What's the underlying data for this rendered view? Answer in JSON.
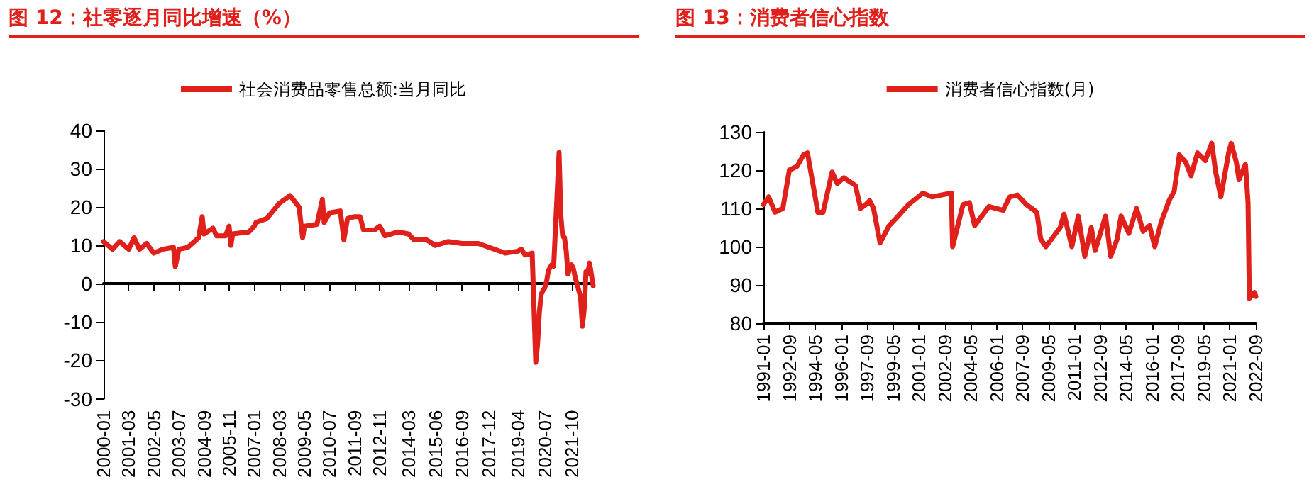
{
  "chart_data": [
    {
      "type": "line",
      "title": "图 12：社零逐月同比增速（%）",
      "legend": "top",
      "xlim": [
        "2000-01",
        "2022-10"
      ],
      "xticks": [
        "2000-01",
        "2001-03",
        "2002-05",
        "2003-07",
        "2004-09",
        "2005-11",
        "2007-01",
        "2008-03",
        "2009-05",
        "2010-07",
        "2011-09",
        "2012-11",
        "2014-03",
        "2015-06",
        "2016-09",
        "2017-12",
        "2019-04",
        "2020-07",
        "2021-10"
      ],
      "ylim": [
        -30,
        40
      ],
      "yticks": [
        -30,
        -20,
        -10,
        0,
        10,
        20,
        30,
        40
      ],
      "series": [
        {
          "name": "社会消费品零售总额:当月同比",
          "color": "#e0201b",
          "x": [
            "2000-01",
            "2000-06",
            "2000-10",
            "2001-03",
            "2001-06",
            "2001-09",
            "2002-01",
            "2002-05",
            "2002-10",
            "2003-04",
            "2003-05",
            "2003-07",
            "2003-12",
            "2004-06",
            "2004-08",
            "2004-09",
            "2005-02",
            "2005-04",
            "2005-09",
            "2005-11",
            "2005-12",
            "2006-01",
            "2006-10",
            "2007-01",
            "2007-02",
            "2007-08",
            "2008-03",
            "2008-09",
            "2009-02",
            "2009-04",
            "2009-05",
            "2009-12",
            "2010-03",
            "2010-04",
            "2010-07",
            "2011-01",
            "2011-03",
            "2011-05",
            "2011-09",
            "2011-12",
            "2012-02",
            "2012-08",
            "2012-11",
            "2013-02",
            "2013-09",
            "2014-03",
            "2014-06",
            "2015-01",
            "2015-06",
            "2016-01",
            "2016-09",
            "2017-06",
            "2017-12",
            "2018-09",
            "2019-04",
            "2019-06",
            "2019-08",
            "2019-12",
            "2020-02",
            "2020-03",
            "2020-04",
            "2020-05",
            "2020-06",
            "2020-07",
            "2020-08",
            "2020-09",
            "2020-10",
            "2020-11",
            "2020-12",
            "2021-03",
            "2021-04",
            "2021-05",
            "2021-06",
            "2021-07",
            "2021-08",
            "2021-09",
            "2021-10",
            "2021-11",
            "2021-12",
            "2022-03",
            "2022-04",
            "2022-05",
            "2022-06",
            "2022-07",
            "2022-08",
            "2022-09",
            "2022-10"
          ],
          "values": [
            11,
            9,
            11,
            9,
            12,
            9,
            10.5,
            8,
            9,
            9.5,
            4.5,
            9,
            9.5,
            12,
            17.5,
            13,
            14.5,
            12.5,
            12.5,
            15,
            10,
            13,
            13.5,
            15,
            16,
            17,
            21,
            23,
            20,
            12,
            15,
            15.5,
            22,
            16,
            18.5,
            19,
            11.5,
            17,
            17.5,
            17.5,
            14,
            14,
            15,
            12.5,
            13.5,
            13,
            11.5,
            11.5,
            10,
            11,
            10.5,
            10.5,
            9.5,
            8,
            8.5,
            9,
            7.5,
            8,
            -20.5,
            -15.8,
            -7.5,
            -2.8,
            -1.8,
            -1.1,
            0.5,
            3.3,
            4.3,
            5,
            4.6,
            34.2,
            17.7,
            12.4,
            12.1,
            8.5,
            2.5,
            4.4,
            4.9,
            3.9,
            1.7,
            -3.5,
            -11.1,
            -6.7,
            3.1,
            2.7,
            5.4,
            2.5,
            -0.5
          ]
        }
      ]
    },
    {
      "type": "line",
      "title": "图 13：消费者信心指数",
      "legend": "top",
      "grid": false,
      "xlim": [
        "1991-01",
        "2022-09"
      ],
      "xticks": [
        "1991-01",
        "1992-09",
        "1994-05",
        "1996-01",
        "1997-09",
        "1999-05",
        "2001-01",
        "2002-09",
        "2004-05",
        "2006-01",
        "2007-09",
        "2009-05",
        "2011-01",
        "2012-09",
        "2014-05",
        "2016-01",
        "2017-09",
        "2019-05",
        "2021-01",
        "2022-09"
      ],
      "ylim": [
        80,
        130
      ],
      "yticks": [
        80,
        90,
        100,
        110,
        120,
        130
      ],
      "series": [
        {
          "name": "消费者信心指数(月)",
          "color": "#e0201b",
          "x": [
            "1991-01",
            "1991-05",
            "1991-10",
            "1992-04",
            "1992-09",
            "1993-03",
            "1993-08",
            "1993-11",
            "1994-07",
            "1994-11",
            "1995-06",
            "1995-10",
            "1996-03",
            "1996-12",
            "1997-04",
            "1997-08",
            "1997-11",
            "1998-02",
            "1998-07",
            "1999-02",
            "1999-09",
            "2000-05",
            "2001-04",
            "2001-11",
            "2003-02",
            "2003-03",
            "2003-11",
            "2004-04",
            "2004-08",
            "2005-07",
            "2006-06",
            "2006-11",
            "2007-05",
            "2007-12",
            "2008-08",
            "2008-11",
            "2009-03",
            "2010-02",
            "2010-05",
            "2010-11",
            "2011-04",
            "2011-09",
            "2012-02",
            "2012-05",
            "2013-01",
            "2013-05",
            "2013-10",
            "2014-01",
            "2014-07",
            "2015-01",
            "2015-06",
            "2015-11",
            "2016-03",
            "2016-08",
            "2017-02",
            "2017-06",
            "2017-10",
            "2018-03",
            "2018-07",
            "2018-12",
            "2019-06",
            "2019-11",
            "2020-02",
            "2020-06",
            "2020-12",
            "2021-02",
            "2021-06",
            "2021-08",
            "2022-01",
            "2022-03",
            "2022-04",
            "2022-08",
            "2022-09"
          ],
          "values": [
            111,
            113,
            109,
            110,
            120,
            121,
            124,
            124.5,
            109,
            109,
            119.5,
            116.5,
            118,
            116,
            110,
            111,
            112,
            110,
            101,
            105.5,
            108,
            111,
            114,
            113,
            114,
            100,
            111,
            111.5,
            105.5,
            110.5,
            109.5,
            113,
            113.5,
            111,
            109,
            102,
            100,
            105,
            108.5,
            100,
            108,
            97.5,
            105,
            99,
            108,
            97.5,
            102,
            108,
            103.5,
            110,
            104,
            105.5,
            100,
            106.5,
            112,
            114.5,
            124,
            122,
            118.5,
            124.5,
            122.5,
            127,
            119.5,
            113,
            124.5,
            127,
            122,
            117.5,
            121.5,
            111.5,
            86.5,
            88,
            87
          ]
        }
      ]
    }
  ]
}
